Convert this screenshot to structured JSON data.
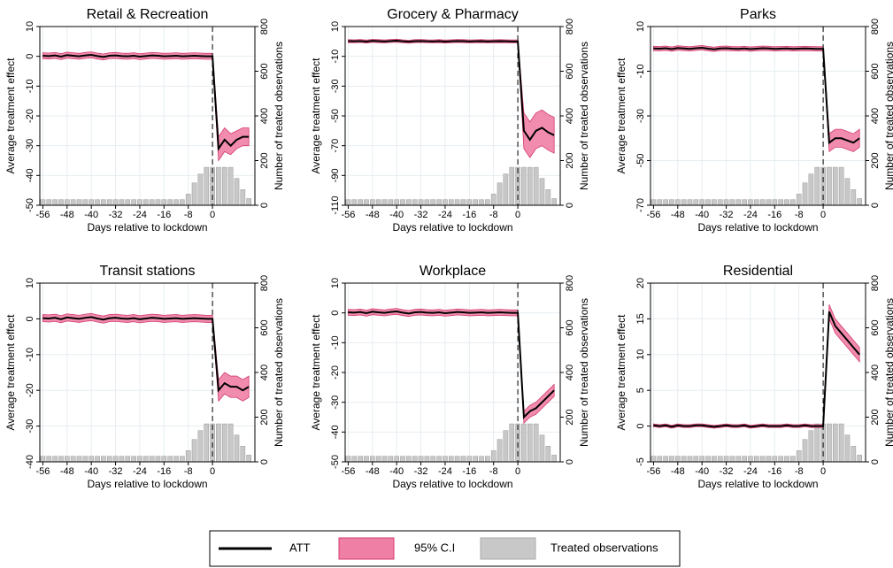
{
  "chart_data": [
    {
      "type": "line",
      "title": "Retail & Recreation",
      "xlabel": "Days relative to lockdown",
      "ylabel": "Average treatment effect",
      "y2label": "Number of treated observations",
      "x": [
        -56,
        -54,
        -52,
        -50,
        -48,
        -46,
        -44,
        -42,
        -40,
        -38,
        -36,
        -34,
        -32,
        -30,
        -28,
        -26,
        -24,
        -22,
        -20,
        -18,
        -16,
        -14,
        -12,
        -10,
        -8,
        -6,
        -4,
        -2,
        0,
        2,
        4,
        6,
        8,
        10,
        12
      ],
      "att": [
        0.2,
        0.1,
        0.3,
        -0.1,
        0.4,
        0.2,
        0,
        0.3,
        0.5,
        0.1,
        -0.2,
        0.2,
        0.3,
        0.1,
        0,
        0.2,
        -0.1,
        0.1,
        0.3,
        0.2,
        0,
        0.1,
        0.2,
        0,
        0.1,
        0.2,
        0.1,
        0,
        0,
        -31,
        -28,
        -30,
        -28,
        -27,
        -27
      ],
      "ci_lower": [
        -0.8,
        -0.9,
        -0.7,
        -1.1,
        -0.6,
        -0.8,
        -1,
        -0.7,
        -0.5,
        -0.9,
        -1.2,
        -0.8,
        -0.7,
        -0.9,
        -1,
        -0.8,
        -1.1,
        -0.9,
        -0.7,
        -0.8,
        -1,
        -0.9,
        -0.8,
        -1,
        -0.9,
        -0.8,
        -0.9,
        -1,
        -1,
        -35,
        -32,
        -33,
        -31,
        -30,
        -30
      ],
      "ci_upper": [
        1.2,
        1.1,
        1.3,
        0.9,
        1.4,
        1.2,
        1,
        1.3,
        1.5,
        1.1,
        0.8,
        1.2,
        1.3,
        1.1,
        1,
        1.2,
        0.9,
        1.1,
        1.3,
        1.2,
        1,
        1.1,
        1.2,
        1,
        1.1,
        1.2,
        1.1,
        1,
        1,
        -27,
        -24,
        -26,
        -25,
        -24,
        -24
      ],
      "counts": [
        25,
        25,
        25,
        25,
        25,
        25,
        25,
        25,
        25,
        25,
        25,
        25,
        25,
        25,
        25,
        25,
        25,
        25,
        25,
        25,
        25,
        25,
        25,
        25,
        50,
        100,
        140,
        170,
        170,
        170,
        170,
        170,
        120,
        70,
        30
      ],
      "xlim": [
        -57,
        14
      ],
      "xticks": [
        -56,
        -48,
        -40,
        -32,
        -24,
        -16,
        -8,
        0
      ],
      "ylim": [
        -50,
        10
      ],
      "yticks": [
        -50,
        -40,
        -30,
        -20,
        -10,
        0,
        10
      ],
      "y2lim": [
        0,
        800
      ],
      "y2ticks": [
        0,
        200,
        400,
        600,
        800
      ]
    },
    {
      "type": "line",
      "title": "Grocery & Pharmacy",
      "xlabel": "Days relative to lockdown",
      "ylabel": "Average treatment effect",
      "y2label": "Number of treated observations",
      "x": [
        -56,
        -54,
        -52,
        -50,
        -48,
        -46,
        -44,
        -42,
        -40,
        -38,
        -36,
        -34,
        -32,
        -30,
        -28,
        -26,
        -24,
        -22,
        -20,
        -18,
        -16,
        -14,
        -12,
        -10,
        -8,
        -6,
        -4,
        -2,
        0,
        2,
        4,
        6,
        8,
        10,
        12
      ],
      "att": [
        0.2,
        0.1,
        0.3,
        -0.1,
        0.4,
        0.2,
        0,
        0.3,
        0.5,
        0.1,
        -0.2,
        0.2,
        0.3,
        0.1,
        0,
        0.2,
        -0.1,
        0.1,
        0.3,
        0.2,
        0,
        0.1,
        0.2,
        0,
        0.1,
        0.2,
        0.1,
        0,
        0,
        -60,
        -66,
        -60,
        -58,
        -61,
        -63
      ],
      "ci_lower": [
        -0.8,
        -0.9,
        -0.7,
        -1.1,
        -0.6,
        -0.8,
        -1,
        -0.7,
        -0.5,
        -0.9,
        -1.2,
        -0.8,
        -0.7,
        -0.9,
        -1,
        -0.8,
        -1.1,
        -0.9,
        -0.7,
        -0.8,
        -1,
        -0.9,
        -0.8,
        -1,
        -0.9,
        -0.8,
        -0.9,
        -1,
        -1,
        -72,
        -78,
        -72,
        -70,
        -73,
        -75
      ],
      "ci_upper": [
        1.2,
        1.1,
        1.3,
        0.9,
        1.4,
        1.2,
        1,
        1.3,
        1.5,
        1.1,
        0.8,
        1.2,
        1.3,
        1.1,
        1,
        1.2,
        0.9,
        1.1,
        1.3,
        1.2,
        1,
        1.1,
        1.2,
        1,
        1.1,
        1.2,
        1.1,
        1,
        1,
        -48,
        -54,
        -48,
        -46,
        -49,
        -51
      ],
      "counts": [
        25,
        25,
        25,
        25,
        25,
        25,
        25,
        25,
        25,
        25,
        25,
        25,
        25,
        25,
        25,
        25,
        25,
        25,
        25,
        25,
        25,
        25,
        25,
        25,
        50,
        100,
        140,
        170,
        170,
        170,
        170,
        170,
        120,
        70,
        30
      ],
      "xlim": [
        -57,
        14
      ],
      "xticks": [
        -56,
        -48,
        -40,
        -32,
        -24,
        -16,
        -8,
        0
      ],
      "ylim": [
        -110,
        10
      ],
      "yticks": [
        -110,
        -90,
        -70,
        -50,
        -30,
        -10,
        10
      ],
      "y2lim": [
        0,
        800
      ],
      "y2ticks": [
        0,
        200,
        400,
        600,
        800
      ]
    },
    {
      "type": "line",
      "title": "Parks",
      "xlabel": "Days relative to lockdown",
      "ylabel": "Average treatment effect",
      "y2label": "Number of treated observations",
      "x": [
        -56,
        -54,
        -52,
        -50,
        -48,
        -46,
        -44,
        -42,
        -40,
        -38,
        -36,
        -34,
        -32,
        -30,
        -28,
        -26,
        -24,
        -22,
        -20,
        -18,
        -16,
        -14,
        -12,
        -10,
        -8,
        -6,
        -4,
        -2,
        0,
        2,
        4,
        6,
        8,
        10,
        12
      ],
      "att": [
        0.2,
        0.1,
        0.3,
        -0.1,
        0.4,
        0.2,
        0,
        0.3,
        0.5,
        0.1,
        -0.2,
        0.2,
        0.3,
        0.1,
        0,
        0.2,
        -0.1,
        0.1,
        0.3,
        0.2,
        0,
        0.1,
        0.2,
        0,
        0.1,
        0.2,
        0.1,
        0,
        0,
        -42,
        -40,
        -40,
        -41,
        -42,
        -40
      ],
      "ci_lower": [
        -0.8,
        -0.9,
        -0.7,
        -1.1,
        -0.6,
        -0.8,
        -1,
        -0.7,
        -0.5,
        -0.9,
        -1.2,
        -0.8,
        -0.7,
        -0.9,
        -1,
        -0.8,
        -1.1,
        -0.9,
        -0.7,
        -0.8,
        -1,
        -0.9,
        -0.8,
        -1,
        -0.9,
        -0.8,
        -0.9,
        -1,
        -1,
        -46,
        -44,
        -44,
        -45,
        -46,
        -44
      ],
      "ci_upper": [
        1.2,
        1.1,
        1.3,
        0.9,
        1.4,
        1.2,
        1,
        1.3,
        1.5,
        1.1,
        0.8,
        1.2,
        1.3,
        1.1,
        1,
        1.2,
        0.9,
        1.1,
        1.3,
        1.2,
        1,
        1.1,
        1.2,
        1,
        1.1,
        1.2,
        1.1,
        1,
        1,
        -38,
        -36,
        -36,
        -37,
        -38,
        -36
      ],
      "counts": [
        25,
        25,
        25,
        25,
        25,
        25,
        25,
        25,
        25,
        25,
        25,
        25,
        25,
        25,
        25,
        25,
        25,
        25,
        25,
        25,
        25,
        25,
        25,
        25,
        50,
        100,
        140,
        170,
        170,
        170,
        170,
        170,
        120,
        70,
        30
      ],
      "xlim": [
        -57,
        14
      ],
      "xticks": [
        -56,
        -48,
        -40,
        -32,
        -24,
        -16,
        -8,
        0
      ],
      "ylim": [
        -70,
        10
      ],
      "yticks": [
        -70,
        -50,
        -30,
        -10,
        10
      ],
      "y2lim": [
        0,
        800
      ],
      "y2ticks": [
        0,
        200,
        400,
        600,
        800
      ]
    },
    {
      "type": "line",
      "title": "Transit stations",
      "xlabel": "Days relative to lockdown",
      "ylabel": "Average treatment effect",
      "y2label": "Number of treated observations",
      "x": [
        -56,
        -54,
        -52,
        -50,
        -48,
        -46,
        -44,
        -42,
        -40,
        -38,
        -36,
        -34,
        -32,
        -30,
        -28,
        -26,
        -24,
        -22,
        -20,
        -18,
        -16,
        -14,
        -12,
        -10,
        -8,
        -6,
        -4,
        -2,
        0,
        2,
        4,
        6,
        8,
        10,
        12
      ],
      "att": [
        0.2,
        0.1,
        0.3,
        -0.1,
        0.4,
        0.2,
        0,
        0.3,
        0.5,
        0.1,
        -0.2,
        0.2,
        0.3,
        0.1,
        0,
        0.2,
        -0.1,
        0.1,
        0.3,
        0.2,
        0,
        0.1,
        0.2,
        0,
        0.1,
        0.2,
        0.1,
        0,
        0,
        -20,
        -18,
        -19,
        -19,
        -20,
        -19
      ],
      "ci_lower": [
        -0.8,
        -0.9,
        -0.7,
        -1.1,
        -0.6,
        -0.8,
        -1,
        -0.7,
        -0.5,
        -0.9,
        -1.2,
        -0.8,
        -0.7,
        -0.9,
        -1,
        -0.8,
        -1.1,
        -0.9,
        -0.7,
        -0.8,
        -1,
        -0.9,
        -0.8,
        -1,
        -0.9,
        -0.8,
        -0.9,
        -1,
        -1,
        -23,
        -21,
        -22,
        -22,
        -23,
        -22
      ],
      "ci_upper": [
        1.2,
        1.1,
        1.3,
        0.9,
        1.4,
        1.2,
        1,
        1.3,
        1.5,
        1.1,
        0.8,
        1.2,
        1.3,
        1.1,
        1,
        1.2,
        0.9,
        1.1,
        1.3,
        1.2,
        1,
        1.1,
        1.2,
        1,
        1.1,
        1.2,
        1.1,
        1,
        1,
        -17,
        -15,
        -16,
        -16,
        -17,
        -16
      ],
      "counts": [
        25,
        25,
        25,
        25,
        25,
        25,
        25,
        25,
        25,
        25,
        25,
        25,
        25,
        25,
        25,
        25,
        25,
        25,
        25,
        25,
        25,
        25,
        25,
        25,
        50,
        100,
        140,
        170,
        170,
        170,
        170,
        170,
        120,
        70,
        30
      ],
      "xlim": [
        -57,
        14
      ],
      "xticks": [
        -56,
        -48,
        -40,
        -32,
        -24,
        -16,
        -8,
        0
      ],
      "ylim": [
        -40,
        10
      ],
      "yticks": [
        -40,
        -30,
        -20,
        -10,
        0,
        10
      ],
      "y2lim": [
        0,
        800
      ],
      "y2ticks": [
        0,
        200,
        400,
        600,
        800
      ]
    },
    {
      "type": "line",
      "title": "Workplace",
      "xlabel": "Days relative to lockdown",
      "ylabel": "Average treatment effect",
      "y2label": "Number of treated observations",
      "x": [
        -56,
        -54,
        -52,
        -50,
        -48,
        -46,
        -44,
        -42,
        -40,
        -38,
        -36,
        -34,
        -32,
        -30,
        -28,
        -26,
        -24,
        -22,
        -20,
        -18,
        -16,
        -14,
        -12,
        -10,
        -8,
        -6,
        -4,
        -2,
        0,
        2,
        4,
        6,
        8,
        10,
        12
      ],
      "att": [
        0.2,
        0.1,
        0.3,
        -0.1,
        0.4,
        0.2,
        0,
        0.3,
        0.5,
        0.1,
        -0.2,
        0.2,
        0.3,
        0.1,
        0,
        0.2,
        -0.1,
        0.1,
        0.3,
        0.2,
        0,
        0.1,
        0.2,
        0,
        0.1,
        0.2,
        0.1,
        0,
        0,
        -35,
        -33,
        -32,
        -30,
        -28,
        -26
      ],
      "ci_lower": [
        -0.8,
        -0.9,
        -0.7,
        -1.1,
        -0.6,
        -0.8,
        -1,
        -0.7,
        -0.5,
        -0.9,
        -1.2,
        -0.8,
        -0.7,
        -0.9,
        -1,
        -0.8,
        -1.1,
        -0.9,
        -0.7,
        -0.8,
        -1,
        -0.9,
        -0.8,
        -1,
        -0.9,
        -0.8,
        -0.9,
        -1,
        -1,
        -37,
        -35,
        -34,
        -32,
        -30,
        -28
      ],
      "ci_upper": [
        1.2,
        1.1,
        1.3,
        0.9,
        1.4,
        1.2,
        1,
        1.3,
        1.5,
        1.1,
        0.8,
        1.2,
        1.3,
        1.1,
        1,
        1.2,
        0.9,
        1.1,
        1.3,
        1.2,
        1,
        1.1,
        1.2,
        1,
        1.1,
        1.2,
        1.1,
        1,
        1,
        -33,
        -31,
        -30,
        -28,
        -26,
        -24
      ],
      "counts": [
        25,
        25,
        25,
        25,
        25,
        25,
        25,
        25,
        25,
        25,
        25,
        25,
        25,
        25,
        25,
        25,
        25,
        25,
        25,
        25,
        25,
        25,
        25,
        25,
        50,
        100,
        140,
        170,
        170,
        170,
        170,
        170,
        120,
        70,
        30
      ],
      "xlim": [
        -57,
        14
      ],
      "xticks": [
        -56,
        -48,
        -40,
        -32,
        -24,
        -16,
        -8,
        0
      ],
      "ylim": [
        -50,
        10
      ],
      "yticks": [
        -50,
        -40,
        -30,
        -20,
        -10,
        0,
        10
      ],
      "y2lim": [
        0,
        800
      ],
      "y2ticks": [
        0,
        200,
        400,
        600,
        800
      ]
    },
    {
      "type": "line",
      "title": "Residential",
      "xlabel": "Days relative to lockdown",
      "ylabel": "Average treatment effect",
      "y2label": "Number of treated observations",
      "x": [
        -56,
        -54,
        -52,
        -50,
        -48,
        -46,
        -44,
        -42,
        -40,
        -38,
        -36,
        -34,
        -32,
        -30,
        -28,
        -26,
        -24,
        -22,
        -20,
        -18,
        -16,
        -14,
        -12,
        -10,
        -8,
        -6,
        -4,
        -2,
        0,
        2,
        4,
        6,
        8,
        10,
        12
      ],
      "att": [
        0.1,
        0,
        0.1,
        -0.1,
        0.1,
        0,
        0,
        0.1,
        0.1,
        0,
        -0.1,
        0,
        0.1,
        0,
        0,
        0.1,
        -0.1,
        0,
        0.1,
        0,
        0,
        0,
        0.1,
        0,
        0,
        0.1,
        0,
        0,
        0,
        16,
        14,
        13,
        12,
        11,
        10
      ],
      "ci_lower": [
        -0.1,
        -0.2,
        -0.1,
        -0.3,
        -0.1,
        -0.2,
        -0.2,
        -0.1,
        -0.1,
        -0.2,
        -0.3,
        -0.2,
        -0.1,
        -0.2,
        -0.2,
        -0.1,
        -0.3,
        -0.2,
        -0.1,
        -0.2,
        -0.2,
        -0.2,
        -0.1,
        -0.2,
        -0.2,
        -0.1,
        -0.2,
        -0.2,
        -0.2,
        15,
        13,
        12,
        11,
        10,
        9
      ],
      "ci_upper": [
        0.3,
        0.2,
        0.3,
        0.1,
        0.3,
        0.2,
        0.2,
        0.3,
        0.3,
        0.2,
        0.1,
        0.2,
        0.3,
        0.2,
        0.2,
        0.3,
        0.1,
        0.2,
        0.3,
        0.2,
        0.2,
        0.2,
        0.3,
        0.2,
        0.2,
        0.3,
        0.2,
        0.2,
        0.2,
        17,
        15,
        14,
        13,
        12,
        11
      ],
      "counts": [
        25,
        25,
        25,
        25,
        25,
        25,
        25,
        25,
        25,
        25,
        25,
        25,
        25,
        25,
        25,
        25,
        25,
        25,
        25,
        25,
        25,
        25,
        25,
        25,
        50,
        100,
        140,
        170,
        170,
        170,
        170,
        170,
        120,
        70,
        30
      ],
      "xlim": [
        -57,
        14
      ],
      "xticks": [
        -56,
        -48,
        -40,
        -32,
        -24,
        -16,
        -8,
        0
      ],
      "ylim": [
        -5,
        20
      ],
      "yticks": [
        -5,
        0,
        5,
        10,
        15,
        20
      ],
      "y2lim": [
        0,
        800
      ],
      "y2ticks": [
        0,
        200,
        400,
        600,
        800
      ]
    }
  ],
  "legend": [
    {
      "name": "ATT",
      "color": "#000000"
    },
    {
      "name": "95% C.I",
      "color": "#f07fa6"
    },
    {
      "name": "Treated observations",
      "color": "#c8c8c8"
    }
  ]
}
